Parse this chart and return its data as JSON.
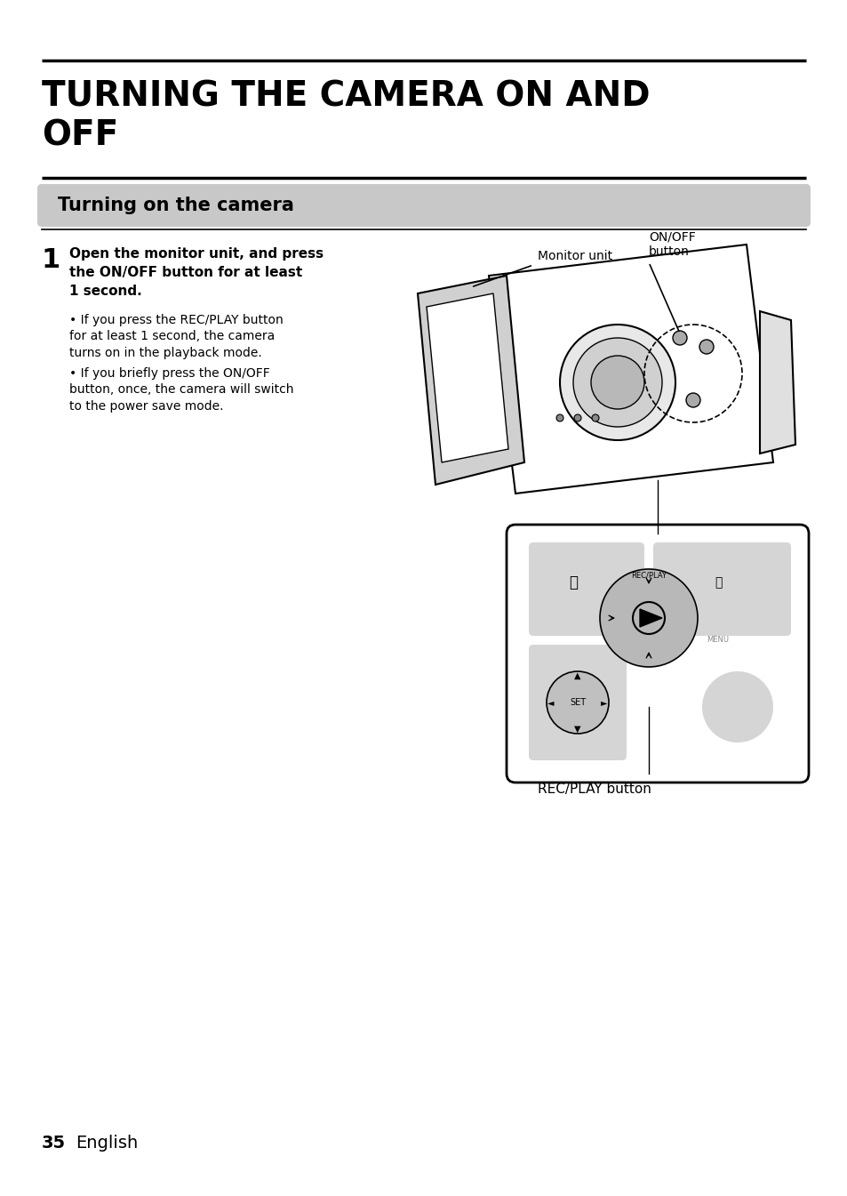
{
  "bg_color": "#ffffff",
  "main_title": "TURNING THE CAMERA ON AND\nOFF",
  "section_title": "Turning on the camera",
  "section_bg": "#cccccc",
  "step_number": "1",
  "step_title": "Open the monitor unit, and press\nthe ON/OFF button for at least\n1 second.",
  "bullet1": "If you press the REC/PLAY button\nfor at least 1 second, the camera\nturns on in the playback mode.",
  "bullet2": "If you briefly press the ON/OFF\nbutton, once, the camera will switch\nto the power save mode.",
  "label_monitor": "Monitor unit",
  "label_onoff": "ON/OFF\nbutton",
  "label_recplay": "REC/PLAY button",
  "page_number": "35",
  "page_lang": "English"
}
